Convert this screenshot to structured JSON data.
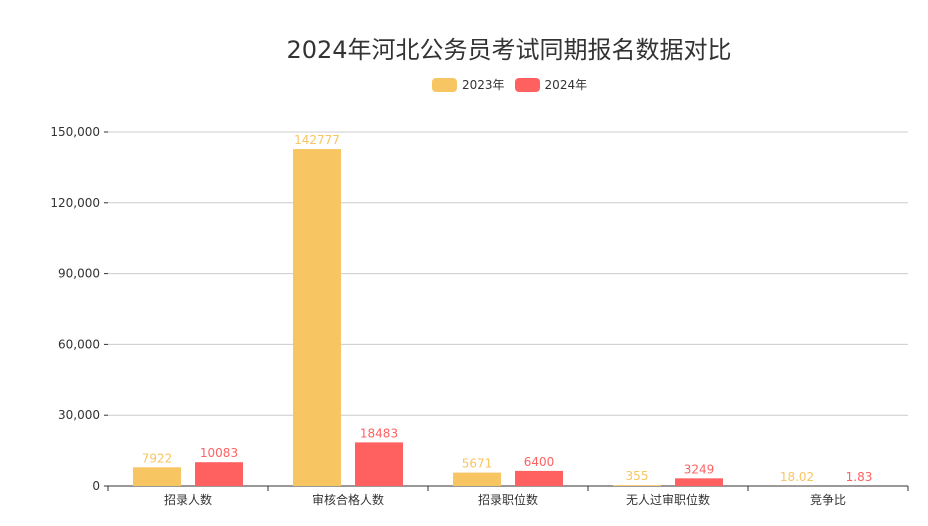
{
  "chart_data": {
    "type": "bar",
    "title": "2024年河北公务员考试同期报名数据对比",
    "categories": [
      "招录人数",
      "审核合格人数",
      "招录职位数",
      "无人过审职位数",
      "竞争比"
    ],
    "series": [
      {
        "name": "2023年",
        "values": [
          7922,
          142777,
          5671,
          355,
          18.02
        ],
        "labels": [
          "7922",
          "142777",
          "5671",
          "355",
          "18.02"
        ],
        "color": "#F7C562"
      },
      {
        "name": "2024年",
        "values": [
          10083,
          18483,
          6400,
          3249,
          1.83
        ],
        "labels": [
          "10083",
          "18483",
          "6400",
          "3249",
          "1.83"
        ],
        "color": "#FF6161"
      }
    ],
    "ylim": [
      0,
      150000
    ],
    "yticks": [
      0,
      30000,
      60000,
      90000,
      120000,
      150000
    ],
    "ytick_labels": [
      "0",
      "30,000",
      "60,000",
      "90,000",
      "120,000",
      "150,000"
    ],
    "grid": true,
    "legend_position": "top-center",
    "xlabel": "",
    "ylabel": ""
  }
}
